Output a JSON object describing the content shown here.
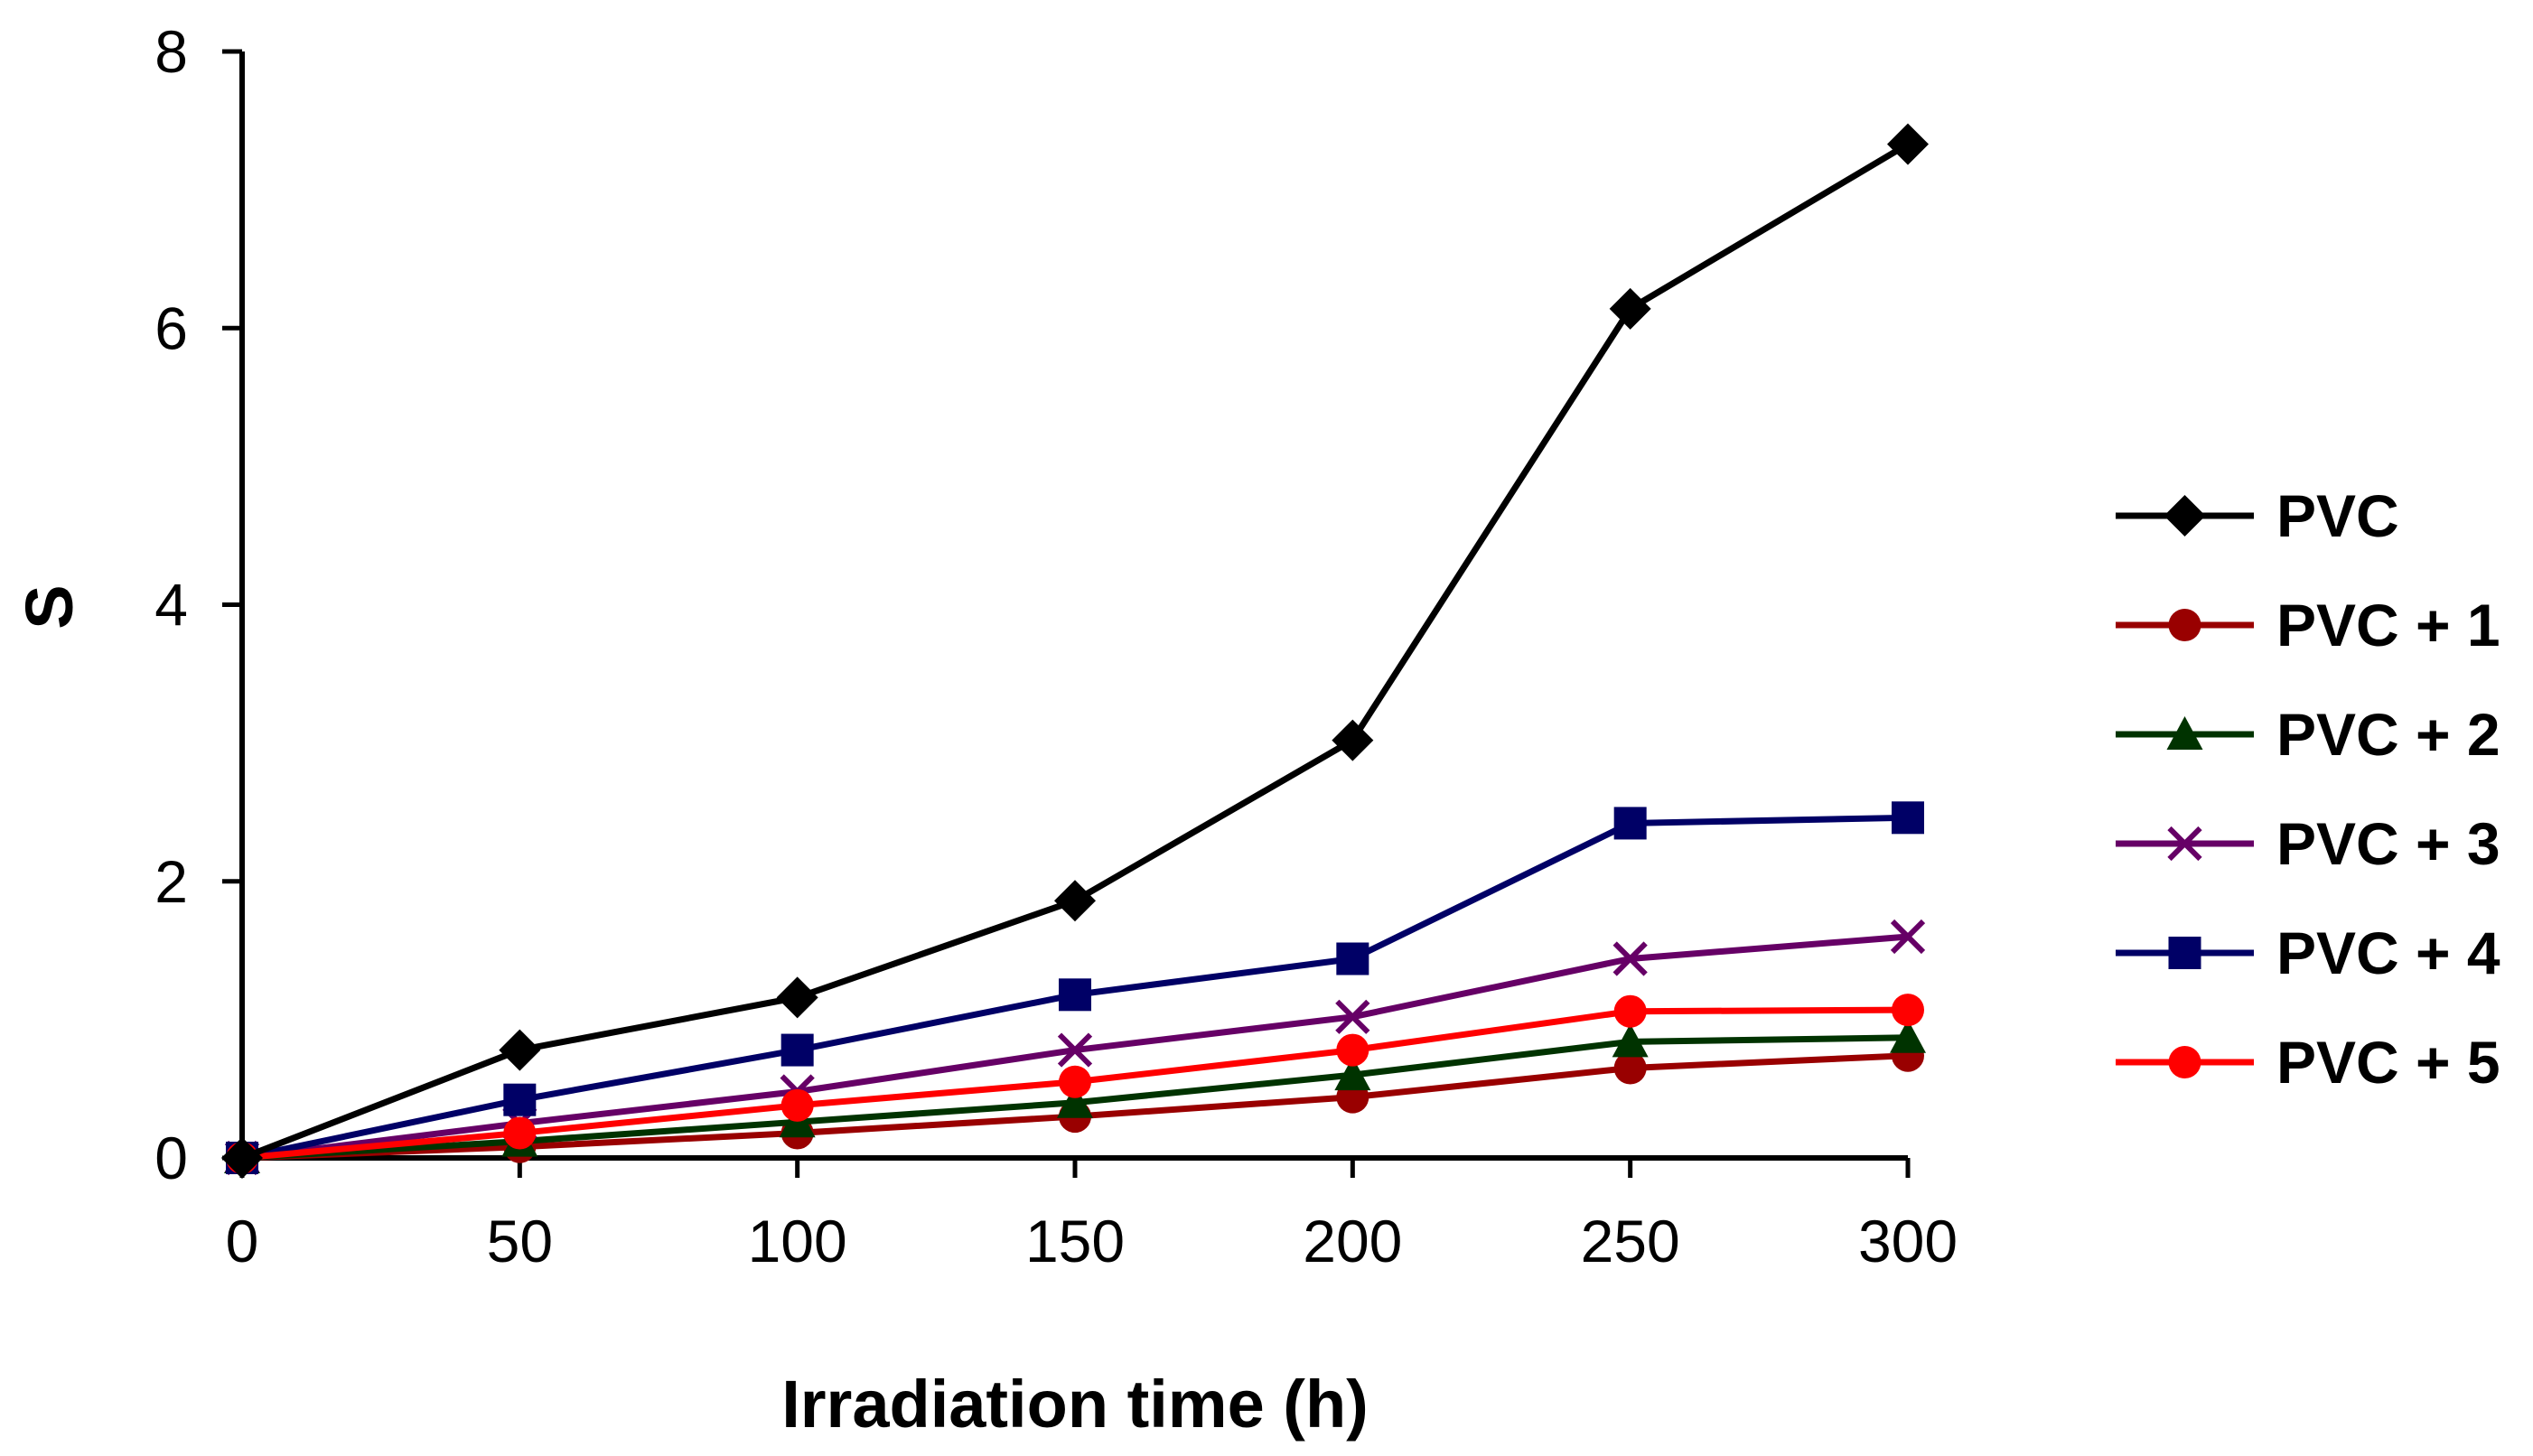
{
  "chart_data": {
    "type": "line",
    "title": "",
    "xlabel": "Irradiation time (h)",
    "ylabel": "S",
    "x": [
      0,
      50,
      100,
      150,
      200,
      250,
      300
    ],
    "xlim": [
      0,
      300
    ],
    "ylim": [
      0,
      8
    ],
    "xticks": [
      "0",
      "50",
      "100",
      "150",
      "200",
      "250",
      "300"
    ],
    "yticks": [
      "0",
      "2",
      "4",
      "6",
      "8"
    ],
    "grid": false,
    "legend_position": "right",
    "series": [
      {
        "name": "PVC",
        "marker": "diamond",
        "color": "#000000",
        "values": [
          0,
          0.78,
          1.16,
          1.86,
          3.02,
          6.14,
          7.33
        ]
      },
      {
        "name": "PVC + 1",
        "marker": "circle",
        "color": "#990000",
        "values": [
          0,
          0.08,
          0.18,
          0.3,
          0.44,
          0.65,
          0.74
        ]
      },
      {
        "name": "PVC + 2",
        "marker": "triangle",
        "color": "#003300",
        "values": [
          0,
          0.12,
          0.26,
          0.4,
          0.6,
          0.84,
          0.87
        ]
      },
      {
        "name": "PVC + 3",
        "marker": "x",
        "color": "#660066",
        "values": [
          0,
          0.25,
          0.48,
          0.78,
          1.02,
          1.44,
          1.6
        ]
      },
      {
        "name": "PVC + 4",
        "marker": "square",
        "color": "#000066",
        "values": [
          0,
          0.42,
          0.78,
          1.18,
          1.44,
          2.42,
          2.46
        ]
      },
      {
        "name": "PVC + 5",
        "marker": "circle",
        "color": "#ff0000",
        "values": [
          0,
          0.18,
          0.38,
          0.55,
          0.78,
          1.06,
          1.07
        ]
      }
    ]
  }
}
